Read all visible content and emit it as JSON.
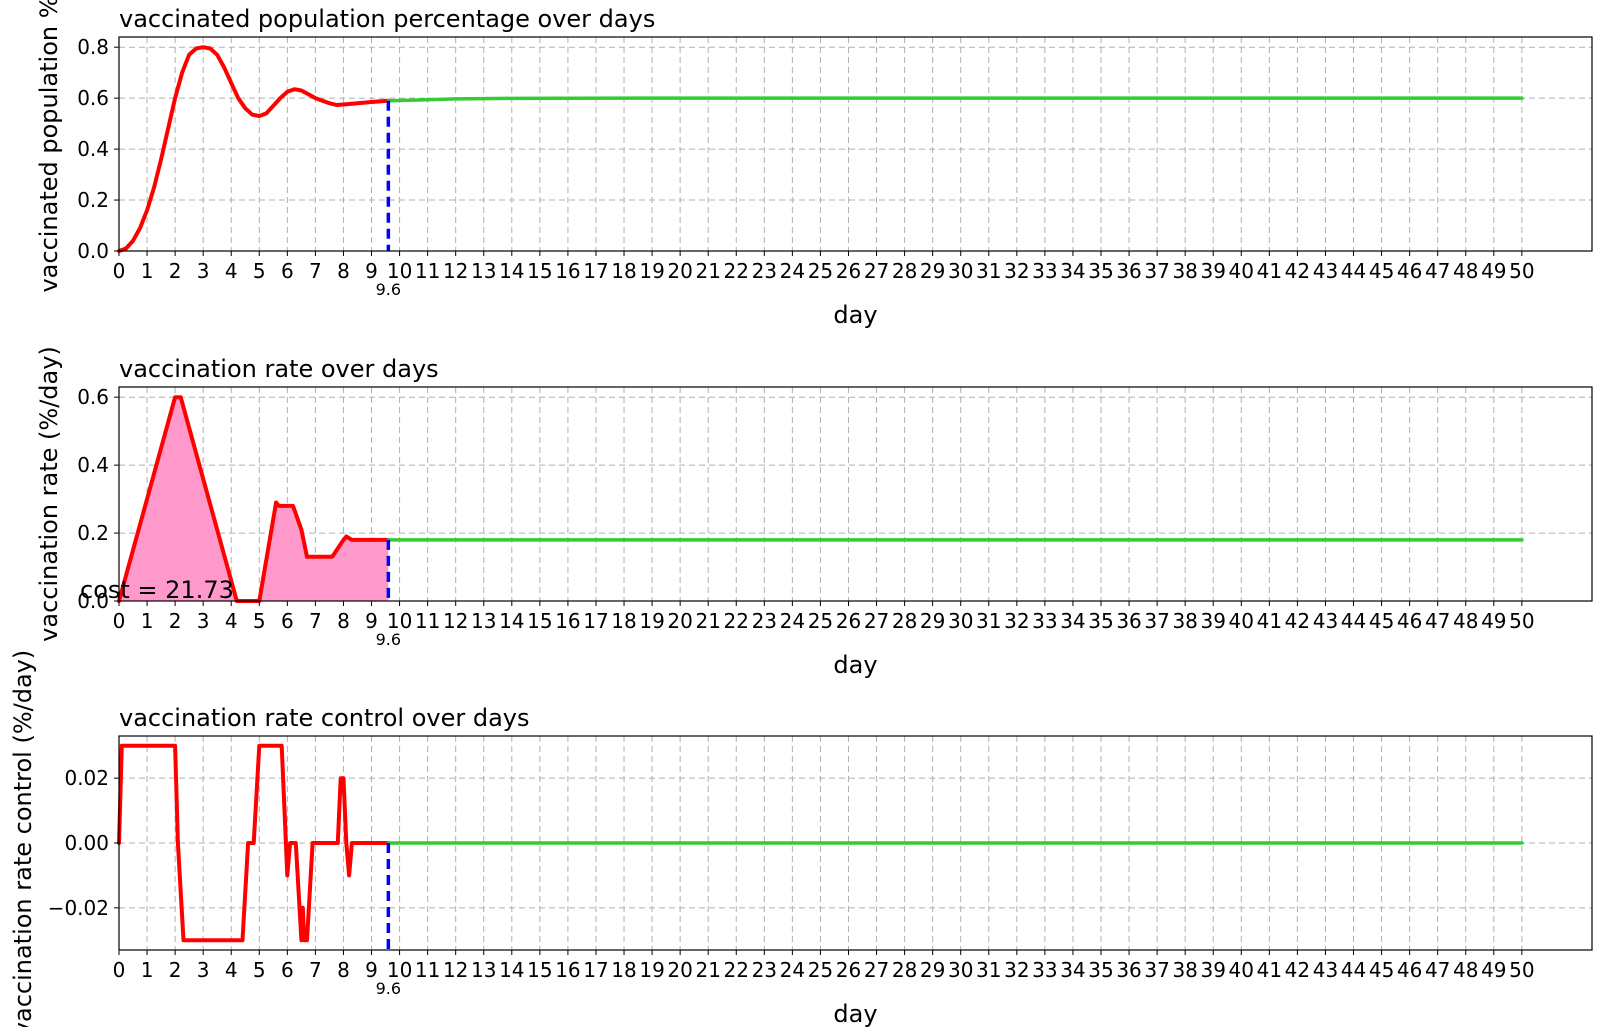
{
  "chart_data": [
    {
      "type": "line",
      "title": "vaccinated population percentage over days",
      "xlabel": "day",
      "ylabel": "vaccinated population %",
      "xlim": [
        0,
        52.5
      ],
      "ylim": [
        0,
        0.84
      ],
      "yticks": [
        0.0,
        0.2,
        0.4,
        0.6,
        0.8
      ],
      "ytick_labels": [
        "0.0",
        "0.2",
        "0.4",
        "0.6",
        "0.8"
      ],
      "grid": true,
      "marker_x": 9.6,
      "marker_label": "9.6",
      "series": [
        {
          "color": "#ff0000",
          "x": [
            0,
            0.25,
            0.5,
            0.75,
            1,
            1.25,
            1.5,
            1.75,
            2,
            2.25,
            2.5,
            2.75,
            3,
            3.25,
            3.5,
            3.75,
            4,
            4.25,
            4.5,
            4.75,
            5,
            5.25,
            5.5,
            5.75,
            6,
            6.25,
            6.5,
            6.75,
            7,
            7.25,
            7.5,
            7.75,
            8,
            8.5,
            9,
            9.6
          ],
          "values": [
            0,
            0.01,
            0.04,
            0.09,
            0.16,
            0.25,
            0.36,
            0.48,
            0.6,
            0.7,
            0.77,
            0.795,
            0.8,
            0.795,
            0.77,
            0.72,
            0.66,
            0.6,
            0.56,
            0.535,
            0.53,
            0.54,
            0.57,
            0.6,
            0.625,
            0.635,
            0.63,
            0.615,
            0.6,
            0.59,
            0.58,
            0.573,
            0.575,
            0.58,
            0.585,
            0.59
          ]
        },
        {
          "color": "#33cc33",
          "x": [
            9.6,
            11,
            12,
            14,
            20,
            30,
            40,
            50
          ],
          "values": [
            0.59,
            0.594,
            0.597,
            0.599,
            0.6,
            0.6,
            0.6,
            0.6
          ]
        }
      ]
    },
    {
      "type": "area",
      "title": "vaccination rate over days",
      "xlabel": "day",
      "ylabel": "vaccination rate (%/day)",
      "xlim": [
        0,
        52.5
      ],
      "ylim": [
        0,
        0.63
      ],
      "yticks": [
        0.0,
        0.2,
        0.4,
        0.6
      ],
      "ytick_labels": [
        "0.0",
        "0.2",
        "0.4",
        "0.6"
      ],
      "grid": true,
      "marker_x": 9.6,
      "marker_label": "9.6",
      "annotation": "cost = 21.73",
      "fill_color": "#ff99cc",
      "series": [
        {
          "color": "#ff0000",
          "x": [
            0,
            2.0,
            2.2,
            4.2,
            4.6,
            5.0,
            5.6,
            5.7,
            6.2,
            6.5,
            6.7,
            7.0,
            7.3,
            7.6,
            8.0,
            8.1,
            8.3,
            9.0,
            9.6
          ],
          "values": [
            0,
            0.6,
            0.6,
            0,
            0,
            0,
            0.29,
            0.28,
            0.28,
            0.21,
            0.13,
            0.13,
            0.13,
            0.13,
            0.18,
            0.19,
            0.18,
            0.18,
            0.18
          ]
        },
        {
          "color": "#33cc33",
          "x": [
            9.6,
            50
          ],
          "values": [
            0.18,
            0.18
          ]
        }
      ]
    },
    {
      "type": "line",
      "title": "vaccination rate control over days",
      "xlabel": "day",
      "ylabel": "vaccination rate control (%/day)",
      "xlim": [
        0,
        52.5
      ],
      "ylim": [
        -0.033,
        0.033
      ],
      "yticks": [
        -0.02,
        0.0,
        0.02
      ],
      "ytick_labels": [
        "−0.02",
        "0.00",
        "0.02"
      ],
      "grid": true,
      "marker_x": 9.6,
      "marker_label": "9.6",
      "series": [
        {
          "color": "#ff0000",
          "x": [
            0,
            0.1,
            2.0,
            2.1,
            2.3,
            4.4,
            4.5,
            4.6,
            4.8,
            4.9,
            5.0,
            5.8,
            5.9,
            6.0,
            6.1,
            6.2,
            6.3,
            6.4,
            6.5,
            6.55,
            6.6,
            6.7,
            6.8,
            6.9,
            7.0,
            7.8,
            7.9,
            8.0,
            8.1,
            8.2,
            8.3,
            9.6
          ],
          "values": [
            0,
            0.03,
            0.03,
            0.0,
            -0.03,
            -0.03,
            -0.015,
            0,
            0,
            0.015,
            0.03,
            0.03,
            0.01,
            -0.01,
            0,
            0,
            0,
            -0.015,
            -0.03,
            -0.02,
            -0.03,
            -0.03,
            -0.015,
            0,
            0,
            0,
            0.02,
            0.02,
            0.0,
            -0.01,
            0,
            0
          ]
        },
        {
          "color": "#33cc33",
          "x": [
            9.6,
            50
          ],
          "values": [
            0,
            0
          ]
        }
      ]
    }
  ],
  "x_ticks": [
    0,
    1,
    2,
    3,
    4,
    5,
    6,
    7,
    8,
    9,
    10,
    11,
    12,
    13,
    14,
    15,
    16,
    17,
    18,
    19,
    20,
    21,
    22,
    23,
    24,
    25,
    26,
    27,
    28,
    29,
    30,
    31,
    32,
    33,
    34,
    35,
    36,
    37,
    38,
    39,
    40,
    41,
    42,
    43,
    44,
    45,
    46,
    47,
    48,
    49,
    50
  ],
  "colors": {
    "history": "#ff0000",
    "forecast": "#33cc33",
    "marker": "#0000ff",
    "fill": "#ff99cc",
    "grid": "#b0b0b0"
  }
}
